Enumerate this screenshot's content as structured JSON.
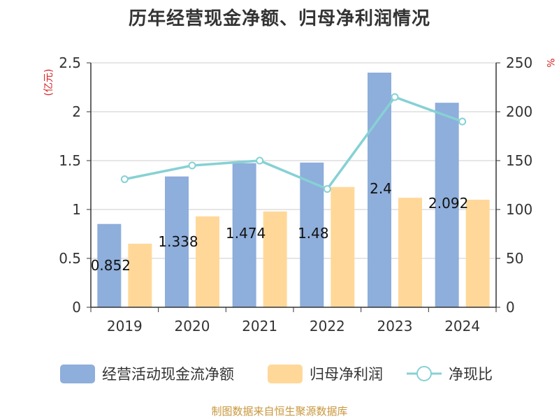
{
  "title": "历年经营现金净额、归母净利润情况",
  "footer": "制图数据来自恒生聚源数据库",
  "chart_data": {
    "type": "bar",
    "categories": [
      "2019",
      "2020",
      "2021",
      "2022",
      "2023",
      "2024"
    ],
    "series": [
      {
        "name": "经营活动现金流净额",
        "type": "bar",
        "axis": "left",
        "color": "#8eaedb",
        "values": [
          0.852,
          1.338,
          1.474,
          1.48,
          2.4,
          2.092
        ],
        "labels": [
          "0.852",
          "1.338",
          "1.474",
          "1.48",
          "2.4",
          "2.092"
        ]
      },
      {
        "name": "归母净利润",
        "type": "bar",
        "axis": "left",
        "color": "#ffd899",
        "values": [
          0.65,
          0.93,
          0.98,
          1.23,
          1.12,
          1.1
        ]
      },
      {
        "name": "净现比",
        "type": "line",
        "axis": "right",
        "color": "#86d1d4",
        "values": [
          131,
          145,
          150,
          121,
          215,
          190
        ]
      }
    ],
    "y_left": {
      "unit": "(亿元)",
      "ylim": [
        0,
        2.5
      ],
      "ticks": [
        "0",
        "0.5",
        "1",
        "1.5",
        "2",
        "2.5"
      ]
    },
    "y_right": {
      "unit": "%",
      "ylim": [
        0,
        250
      ],
      "ticks": [
        "0",
        "50",
        "100",
        "150",
        "200",
        "250"
      ]
    },
    "grid": true,
    "legend_position": "bottom"
  }
}
